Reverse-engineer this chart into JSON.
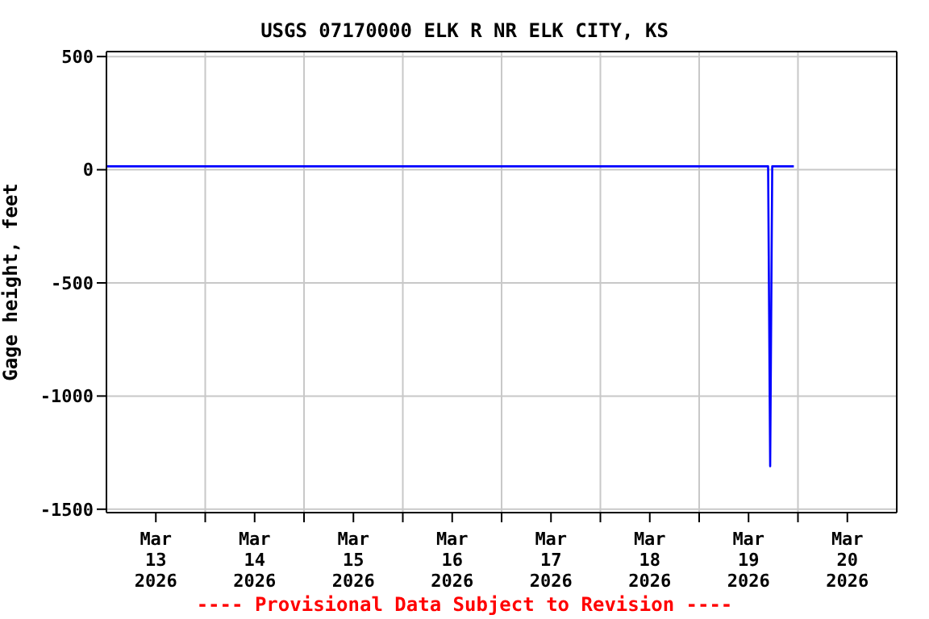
{
  "chart_data": {
    "type": "line",
    "title": "USGS 07170000 ELK R NR ELK CITY, KS",
    "ylabel": "Gage height, feet",
    "annotations": [
      "---- Provisional Data Subject to Revision ----"
    ],
    "series": [
      {
        "color": "#0000ff",
        "x": [
          "2026-03-13T00:00",
          "2026-03-19T16:45",
          "2026-03-19T17:00",
          "2026-03-19T17:15",
          "2026-03-19T17:30",
          "2026-03-19T17:45",
          "2026-03-19T23:00"
        ],
        "values": [
          15,
          15,
          -640,
          -1310,
          -640,
          15,
          15
        ]
      }
    ],
    "xlim": [
      "2026-03-13T00:00",
      "2026-03-21T00:00"
    ],
    "xticks": [
      {
        "value": "2026-03-13T12:00",
        "label": "Mar\n13\n2026"
      },
      {
        "value": "2026-03-14T12:00",
        "label": "Mar\n14\n2026"
      },
      {
        "value": "2026-03-15T12:00",
        "label": "Mar\n15\n2026"
      },
      {
        "value": "2026-03-16T12:00",
        "label": "Mar\n16\n2026"
      },
      {
        "value": "2026-03-17T12:00",
        "label": "Mar\n17\n2026"
      },
      {
        "value": "2026-03-18T12:00",
        "label": "Mar\n18\n2026"
      },
      {
        "value": "2026-03-19T12:00",
        "label": "Mar\n19\n2026"
      },
      {
        "value": "2026-03-20T12:00",
        "label": "Mar\n20\n2026"
      },
      {
        "value": "2026-03-14T00:00",
        "label": null
      },
      {
        "value": "2026-03-15T00:00",
        "label": null
      },
      {
        "value": "2026-03-16T00:00",
        "label": null
      },
      {
        "value": "2026-03-17T00:00",
        "label": null
      },
      {
        "value": "2026-03-18T00:00",
        "label": null
      },
      {
        "value": "2026-03-19T00:00",
        "label": null
      },
      {
        "value": "2026-03-20T00:00",
        "label": null
      }
    ],
    "ylim": [
      -1515,
      522
    ],
    "yticks": [
      -1500,
      -1000,
      -500,
      0,
      500
    ],
    "grid": true,
    "marker": "none",
    "line_style": "solid"
  }
}
